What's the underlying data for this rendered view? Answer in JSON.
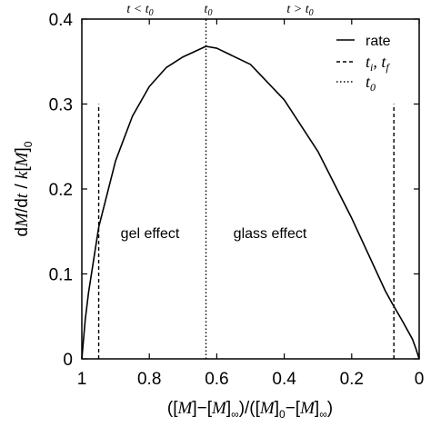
{
  "chart_data": {
    "type": "line",
    "title": "",
    "xlabel": "([M]−[M]∞)/([M]0−[M]∞)",
    "ylabel": "dM/dt / k[M]0",
    "xlim": [
      1,
      0
    ],
    "ylim": [
      0,
      0.4
    ],
    "x_reversed": true,
    "x_ticks": [
      "1",
      "0.8",
      "0.6",
      "0.4",
      "0.2",
      "0"
    ],
    "y_ticks": [
      "0",
      "0.1",
      "0.2",
      "0.3",
      "0.4"
    ],
    "series": [
      {
        "name": "rate",
        "style": "solid",
        "x": [
          1.0,
          0.99,
          0.98,
          0.95,
          0.9,
          0.85,
          0.8,
          0.75,
          0.7,
          0.6321,
          0.6,
          0.5,
          0.4,
          0.3,
          0.2,
          0.1,
          0.08,
          0.05,
          0.02,
          0.01,
          0.0
        ],
        "y": [
          0.0,
          0.0458,
          0.0784,
          0.1549,
          0.2331,
          0.2857,
          0.3206,
          0.3428,
          0.3555,
          0.3679,
          0.3657,
          0.3466,
          0.3049,
          0.2441,
          0.1656,
          0.0797,
          0.0653,
          0.0448,
          0.0232,
          0.0124,
          0.0
        ]
      }
    ],
    "vlines": [
      {
        "name": "ti, tf",
        "style": "dashed",
        "x": [
          0.95,
          0.075
        ],
        "y_top": 0.3
      },
      {
        "name": "t0",
        "style": "dotted",
        "x": [
          0.632
        ],
        "y_top": 0.4
      }
    ],
    "legend": {
      "position": "top-right",
      "entries": [
        {
          "style": "solid",
          "label": "rate"
        },
        {
          "style": "dashed",
          "label": "ti, tf"
        },
        {
          "style": "dotted",
          "label": "t0"
        }
      ]
    },
    "annotations": {
      "region_left": "gel effect",
      "region_right": "glass effect",
      "top_left": "t < t0",
      "top_mid": "t0",
      "top_right": "t > t0"
    },
    "grid": false
  }
}
